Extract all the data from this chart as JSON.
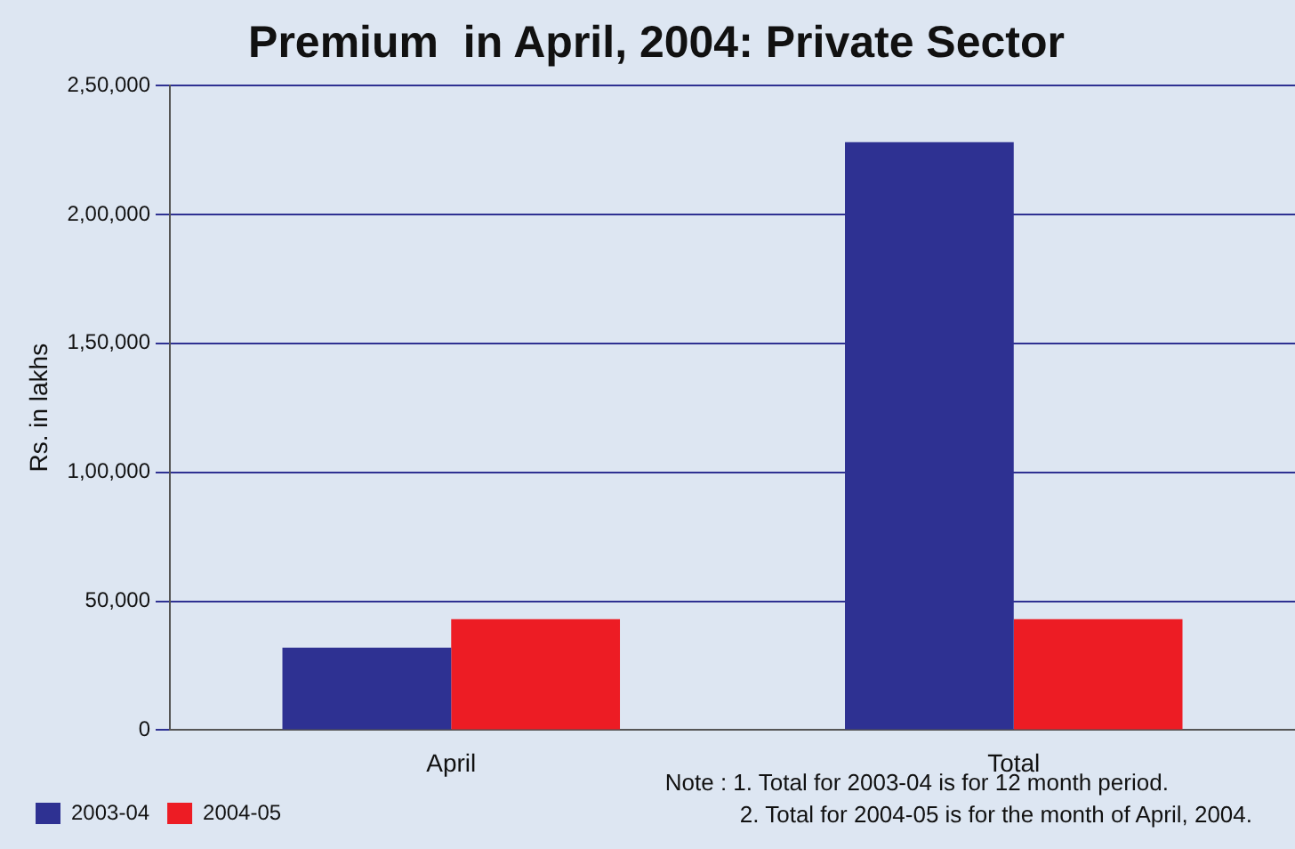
{
  "chart_data": {
    "type": "bar",
    "title": "Premium  in April, 2004: Private Sector",
    "ylabel": "Rs. in lakhs",
    "categories": [
      "April",
      "Total"
    ],
    "series": [
      {
        "name": "2003-04",
        "color": "#2e3192",
        "values": [
          32000,
          228000
        ]
      },
      {
        "name": "2004-05",
        "color": "#ed1c24",
        "values": [
          43000,
          43000
        ]
      }
    ],
    "ylim": [
      0,
      250000
    ],
    "yticks": [
      {
        "value": 0,
        "label": "0"
      },
      {
        "value": 50000,
        "label": "50,000"
      },
      {
        "value": 100000,
        "label": "1,00,000"
      },
      {
        "value": 150000,
        "label": "1,50,000"
      },
      {
        "value": 200000,
        "label": "2,00,000"
      },
      {
        "value": 250000,
        "label": "2,50,000"
      }
    ],
    "grid": "y",
    "legend": "bottom left",
    "annotations": [
      "Note :  1. Total  for 2003-04 is for 12 month period.",
      "2. Total for 2004-05 is for the month of  April, 2004."
    ]
  }
}
